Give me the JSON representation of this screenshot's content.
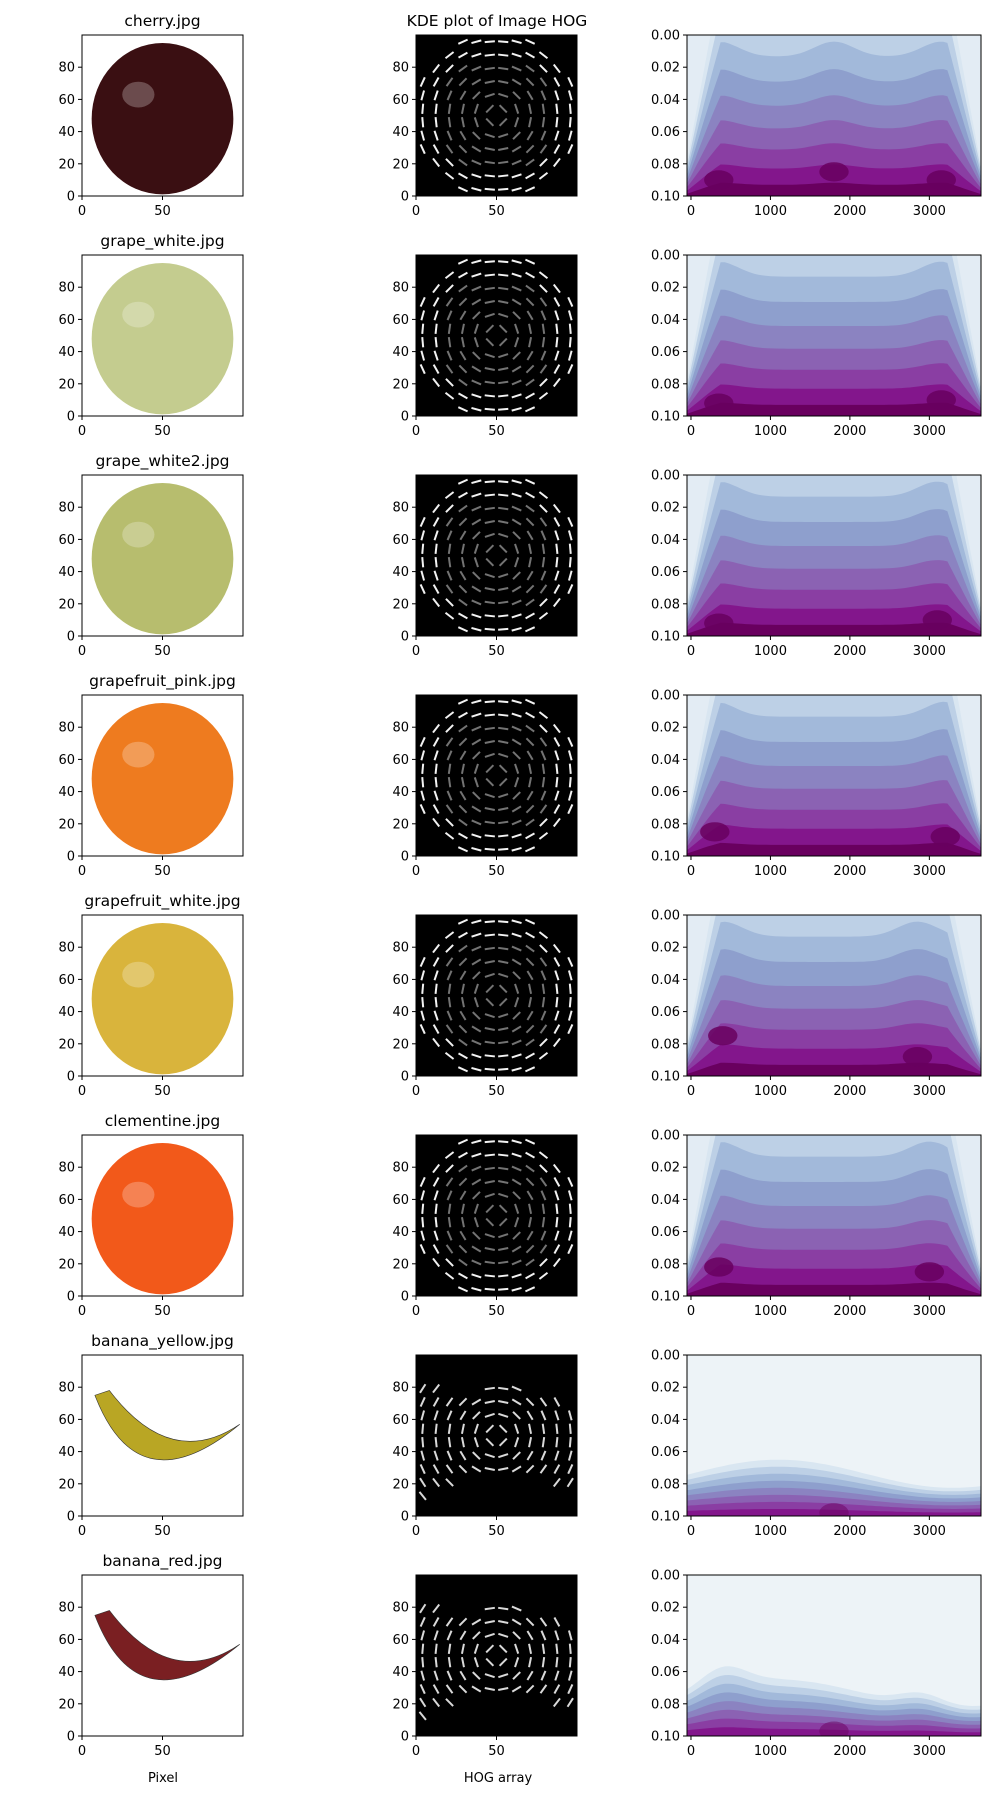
{
  "figure": {
    "column_titles": [
      "",
      "KDE plot of Image HOG",
      ""
    ],
    "xlabels": [
      "Pixel",
      "HOG array",
      ""
    ]
  },
  "chart_data": [
    {
      "type": "image",
      "title": "cherry.jpg",
      "xticks": [
        0,
        50
      ],
      "yticks": [
        0,
        20,
        40,
        60,
        80
      ],
      "xlim": [
        0,
        100
      ],
      "ylim": [
        100,
        0
      ],
      "fruit_color": "#3a0f12"
    },
    {
      "type": "image",
      "title": "",
      "xticks": [
        0,
        50
      ],
      "yticks": [
        0,
        20,
        40,
        60,
        80
      ],
      "xlim": [
        0,
        100
      ],
      "ylim": [
        100,
        0
      ]
    },
    {
      "type": "kde",
      "title": "",
      "xticks": [
        0,
        1000,
        2000,
        3000
      ],
      "yticks": [
        0.0,
        0.02,
        0.04,
        0.06,
        0.08,
        0.1
      ],
      "ytick_labels": [
        "0.00",
        "0.02",
        "0.04",
        "0.06",
        "0.08",
        "0.10"
      ],
      "xlim": [
        -50,
        3650
      ],
      "ylim": [
        0,
        0.1
      ],
      "peaks": [
        [
          350,
          0.01
        ],
        [
          1800,
          0.015
        ],
        [
          3150,
          0.01
        ]
      ]
    },
    {
      "type": "image",
      "title": "grape_white.jpg",
      "xticks": [
        0,
        50
      ],
      "yticks": [
        0,
        20,
        40,
        60,
        80
      ],
      "xlim": [
        0,
        100
      ],
      "ylim": [
        100,
        0
      ],
      "fruit_color": "#c4cc8f"
    },
    {
      "type": "image",
      "title": "",
      "xticks": [
        0,
        50
      ],
      "yticks": [
        0,
        20,
        40,
        60,
        80
      ],
      "xlim": [
        0,
        100
      ],
      "ylim": [
        100,
        0
      ]
    },
    {
      "type": "kde",
      "title": "",
      "xticks": [
        0,
        1000,
        2000,
        3000
      ],
      "yticks": [
        0.0,
        0.02,
        0.04,
        0.06,
        0.08,
        0.1
      ],
      "ytick_labels": [
        "0.00",
        "0.02",
        "0.04",
        "0.06",
        "0.08",
        "0.10"
      ],
      "xlim": [
        -50,
        3650
      ],
      "ylim": [
        0,
        0.1
      ],
      "peaks": [
        [
          350,
          0.008
        ],
        [
          3150,
          0.01
        ]
      ]
    },
    {
      "type": "image",
      "title": "grape_white2.jpg",
      "xticks": [
        0,
        50
      ],
      "yticks": [
        0,
        20,
        40,
        60,
        80
      ],
      "xlim": [
        0,
        100
      ],
      "ylim": [
        100,
        0
      ],
      "fruit_color": "#b7bd6e"
    },
    {
      "type": "image",
      "title": "",
      "xticks": [
        0,
        50
      ],
      "yticks": [
        0,
        20,
        40,
        60,
        80
      ],
      "xlim": [
        0,
        100
      ],
      "ylim": [
        100,
        0
      ]
    },
    {
      "type": "kde",
      "title": "",
      "xticks": [
        0,
        1000,
        2000,
        3000
      ],
      "yticks": [
        0.0,
        0.02,
        0.04,
        0.06,
        0.08,
        0.1
      ],
      "ytick_labels": [
        "0.00",
        "0.02",
        "0.04",
        "0.06",
        "0.08",
        "0.10"
      ],
      "xlim": [
        -50,
        3650
      ],
      "ylim": [
        0,
        0.1
      ],
      "peaks": [
        [
          350,
          0.008
        ],
        [
          3100,
          0.01
        ]
      ]
    },
    {
      "type": "image",
      "title": "grapefruit_pink.jpg",
      "xticks": [
        0,
        50
      ],
      "yticks": [
        0,
        20,
        40,
        60,
        80
      ],
      "xlim": [
        0,
        100
      ],
      "ylim": [
        100,
        0
      ],
      "fruit_color": "#ee7b1f"
    },
    {
      "type": "image",
      "title": "",
      "xticks": [
        0,
        50
      ],
      "yticks": [
        0,
        20,
        40,
        60,
        80
      ],
      "xlim": [
        0,
        100
      ],
      "ylim": [
        100,
        0
      ]
    },
    {
      "type": "kde",
      "title": "",
      "xticks": [
        0,
        1000,
        2000,
        3000
      ],
      "yticks": [
        0.0,
        0.02,
        0.04,
        0.06,
        0.08,
        0.1
      ],
      "ytick_labels": [
        "0.00",
        "0.02",
        "0.04",
        "0.06",
        "0.08",
        "0.10"
      ],
      "xlim": [
        -50,
        3650
      ],
      "ylim": [
        0,
        0.1
      ],
      "peaks": [
        [
          300,
          0.015
        ],
        [
          3200,
          0.012
        ]
      ]
    },
    {
      "type": "image",
      "title": "grapefruit_white.jpg",
      "xticks": [
        0,
        50
      ],
      "yticks": [
        0,
        20,
        40,
        60,
        80
      ],
      "xlim": [
        0,
        100
      ],
      "ylim": [
        100,
        0
      ],
      "fruit_color": "#d9b43c"
    },
    {
      "type": "image",
      "title": "",
      "xticks": [
        0,
        50
      ],
      "yticks": [
        0,
        20,
        40,
        60,
        80
      ],
      "xlim": [
        0,
        100
      ],
      "ylim": [
        100,
        0
      ]
    },
    {
      "type": "kde",
      "title": "",
      "xticks": [
        0,
        1000,
        2000,
        3000
      ],
      "yticks": [
        0.0,
        0.02,
        0.04,
        0.06,
        0.08,
        0.1
      ],
      "ytick_labels": [
        "0.00",
        "0.02",
        "0.04",
        "0.06",
        "0.08",
        "0.10"
      ],
      "xlim": [
        -50,
        3650
      ],
      "ylim": [
        0,
        0.1
      ],
      "peaks": [
        [
          400,
          0.025
        ],
        [
          2850,
          0.012
        ]
      ]
    },
    {
      "type": "image",
      "title": "clementine.jpg",
      "xticks": [
        0,
        50
      ],
      "yticks": [
        0,
        20,
        40,
        60,
        80
      ],
      "xlim": [
        0,
        100
      ],
      "ylim": [
        100,
        0
      ],
      "fruit_color": "#f2591a"
    },
    {
      "type": "image",
      "title": "",
      "xticks": [
        0,
        50
      ],
      "yticks": [
        0,
        20,
        40,
        60,
        80
      ],
      "xlim": [
        0,
        100
      ],
      "ylim": [
        100,
        0
      ]
    },
    {
      "type": "kde",
      "title": "",
      "xticks": [
        0,
        1000,
        2000,
        3000
      ],
      "yticks": [
        0.0,
        0.02,
        0.04,
        0.06,
        0.08,
        0.1
      ],
      "ytick_labels": [
        "0.00",
        "0.02",
        "0.04",
        "0.06",
        "0.08",
        "0.10"
      ],
      "xlim": [
        -50,
        3650
      ],
      "ylim": [
        0,
        0.1
      ],
      "peaks": [
        [
          350,
          0.018
        ],
        [
          3000,
          0.015
        ]
      ]
    },
    {
      "type": "image",
      "title": "banana_yellow.jpg",
      "xticks": [
        0,
        50
      ],
      "yticks": [
        0,
        20,
        40,
        60,
        80
      ],
      "xlim": [
        0,
        100
      ],
      "ylim": [
        100,
        0
      ],
      "fruit_color": "#b9a624"
    },
    {
      "type": "image",
      "title": "",
      "xticks": [
        0,
        50
      ],
      "yticks": [
        0,
        20,
        40,
        60,
        80
      ],
      "xlim": [
        0,
        100
      ],
      "ylim": [
        100,
        0
      ]
    },
    {
      "type": "kde",
      "title": "",
      "xticks": [
        0,
        1000,
        2000,
        3000
      ],
      "yticks": [
        0.0,
        0.02,
        0.04,
        0.06,
        0.08,
        0.1
      ],
      "ytick_labels": [
        "0.00",
        "0.02",
        "0.04",
        "0.06",
        "0.08",
        "0.10"
      ],
      "xlim": [
        -50,
        3650
      ],
      "ylim": [
        0,
        0.1
      ],
      "peaks": [
        [
          1800,
          0.002
        ]
      ]
    },
    {
      "type": "image",
      "title": "banana_red.jpg",
      "xticks": [
        0,
        50
      ],
      "yticks": [
        0,
        20,
        40,
        60,
        80
      ],
      "xlim": [
        0,
        100
      ],
      "ylim": [
        100,
        0
      ],
      "fruit_color": "#7a1f22"
    },
    {
      "type": "image",
      "title": "",
      "xticks": [
        0,
        50
      ],
      "yticks": [
        0,
        20,
        40,
        60,
        80
      ],
      "xlim": [
        0,
        100
      ],
      "ylim": [
        100,
        0
      ]
    },
    {
      "type": "kde",
      "title": "",
      "xticks": [
        0,
        1000,
        2000,
        3000
      ],
      "yticks": [
        0.0,
        0.02,
        0.04,
        0.06,
        0.08,
        0.1
      ],
      "ytick_labels": [
        "0.00",
        "0.02",
        "0.04",
        "0.06",
        "0.08",
        "0.10"
      ],
      "xlim": [
        -50,
        3650
      ],
      "ylim": [
        0,
        0.1
      ],
      "peaks": [
        [
          1800,
          0.003
        ]
      ]
    }
  ]
}
